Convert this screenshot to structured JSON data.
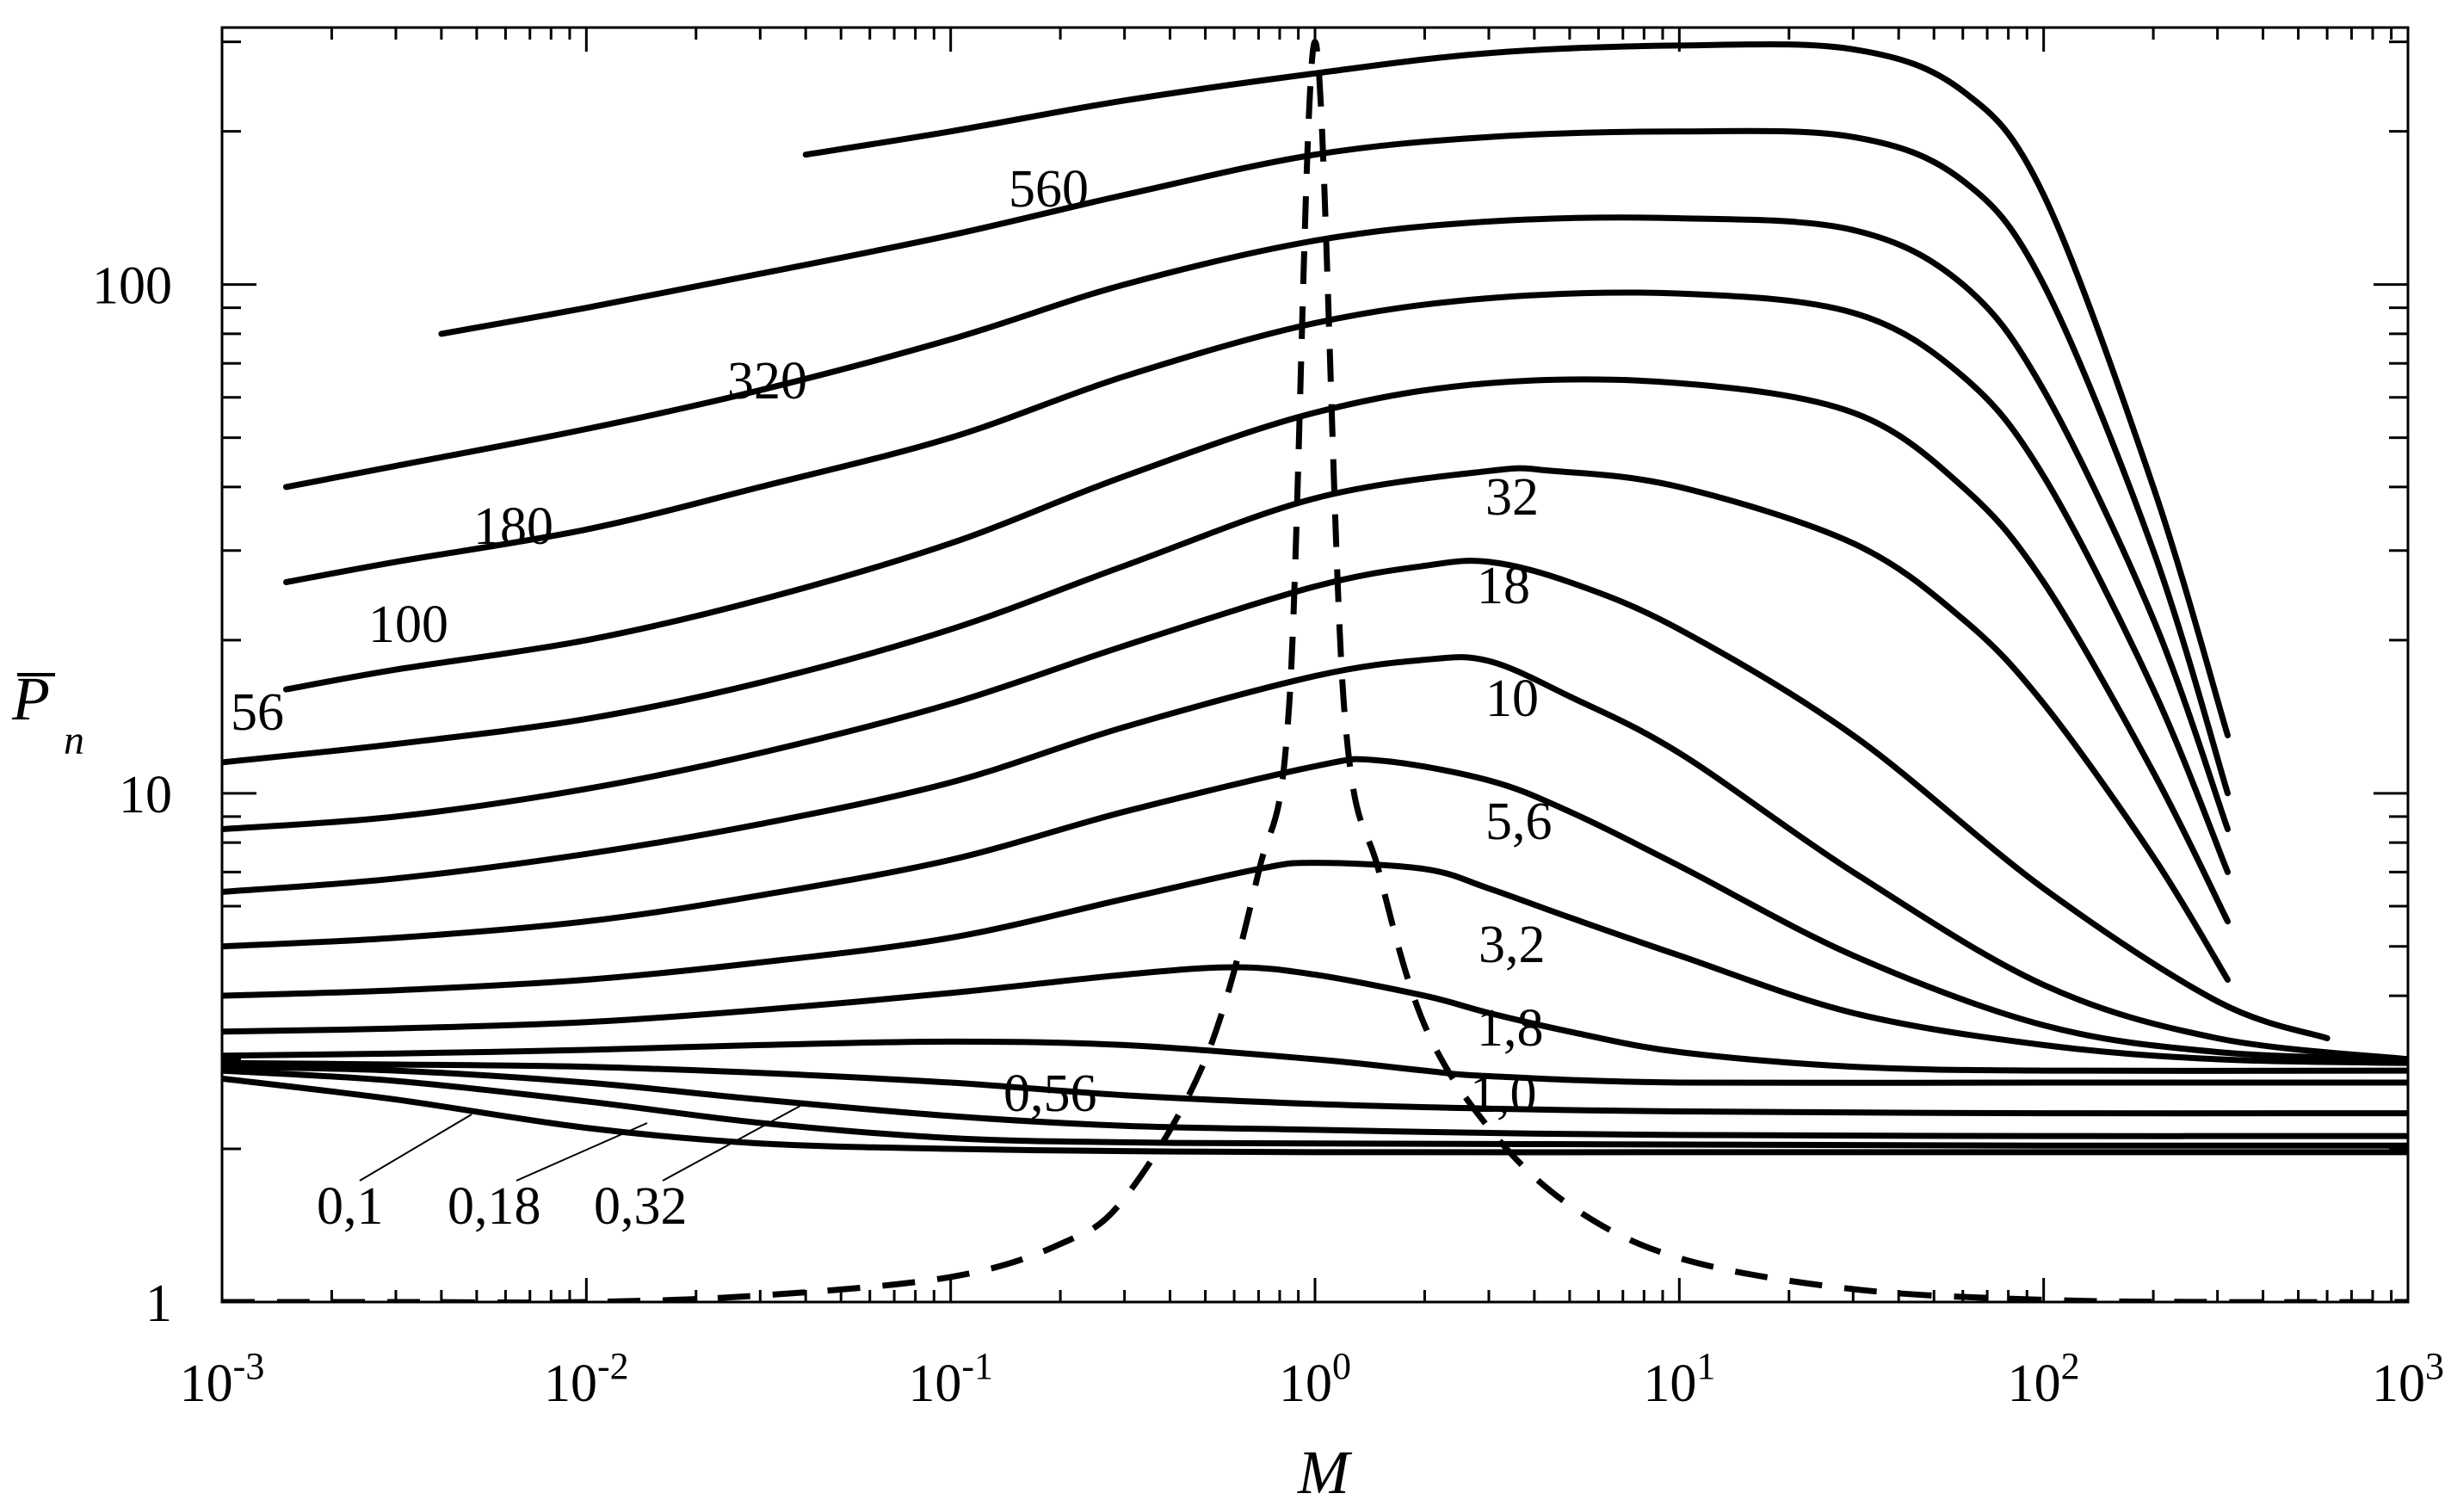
{
  "chart_data": {
    "type": "line",
    "x_scale": "log",
    "y_scale": "log",
    "xlim": [
      0.001,
      1000
    ],
    "ylim": [
      1,
      320
    ],
    "grid": false,
    "xlabel": "M",
    "ylabel": {
      "main": "P",
      "sub": "n",
      "overline": true
    },
    "x_ticks": [
      {
        "base": "10",
        "exp": "-3",
        "value": 0.001
      },
      {
        "base": "10",
        "exp": "-2",
        "value": 0.01
      },
      {
        "base": "10",
        "exp": "-1",
        "value": 0.1
      },
      {
        "base": "10",
        "exp": "0",
        "value": 1
      },
      {
        "base": "10",
        "exp": "1",
        "value": 10
      },
      {
        "base": "10",
        "exp": "2",
        "value": 100
      },
      {
        "base": "10",
        "exp": "3",
        "value": 1000
      }
    ],
    "y_ticks": [
      {
        "label": "1",
        "value": 1
      },
      {
        "label": "10",
        "value": 10
      },
      {
        "label": "100",
        "value": 100
      }
    ],
    "series": [
      {
        "name": "560",
        "style": "solid",
        "x": [
          0.04,
          0.1,
          0.3,
          1,
          3,
          10,
          30,
          60,
          100,
          200,
          320
        ],
        "y": [
          180,
          200,
          230,
          260,
          285,
          295,
          290,
          240,
          150,
          40,
          13
        ]
      },
      {
        "name": "320",
        "x": [
          0.004,
          0.01,
          0.03,
          0.1,
          0.3,
          1,
          3,
          10,
          30,
          60,
          100,
          200,
          320
        ],
        "y": [
          80,
          90,
          105,
          125,
          150,
          180,
          195,
          200,
          195,
          160,
          100,
          30,
          10
        ],
        "style": "solid"
      },
      {
        "name": "180",
        "x": [
          0.0015,
          0.003,
          0.01,
          0.03,
          0.1,
          0.3,
          1,
          3,
          10,
          30,
          60,
          100,
          200,
          320
        ],
        "y": [
          40,
          44,
          52,
          62,
          78,
          100,
          122,
          133,
          135,
          128,
          100,
          62,
          22,
          8.5
        ],
        "style": "solid"
      },
      {
        "name": "100",
        "x": [
          0.0015,
          0.003,
          0.01,
          0.03,
          0.1,
          0.3,
          1,
          3,
          10,
          30,
          60,
          100,
          200,
          320
        ],
        "y": [
          26,
          28.5,
          33,
          40,
          50,
          66,
          84,
          94,
          96,
          88,
          66,
          42,
          16,
          7
        ],
        "style": "solid"
      },
      {
        "name": "56",
        "x": [
          0.0015,
          0.003,
          0.01,
          0.03,
          0.1,
          0.3,
          1,
          3,
          10,
          30,
          60,
          100,
          200,
          320
        ],
        "y": [
          16,
          17.5,
          20,
          24,
          31,
          42,
          56,
          64,
          64,
          56,
          40,
          26,
          11,
          5.6
        ],
        "style": "solid"
      },
      {
        "name": "32",
        "x": [
          0.001,
          0.003,
          0.01,
          0.03,
          0.1,
          0.3,
          1,
          3,
          4.5,
          10,
          30,
          60,
          100,
          200,
          320
        ],
        "y": [
          11.5,
          12.5,
          14,
          16.5,
          21,
          28,
          38,
          43,
          43,
          40,
          31,
          22,
          15,
          7.5,
          4.3
        ],
        "style": "solid"
      },
      {
        "name": "18",
        "x": [
          0.001,
          0.003,
          0.01,
          0.03,
          0.1,
          0.3,
          1,
          2,
          3,
          5,
          10,
          30,
          100,
          300,
          600
        ],
        "y": [
          8.5,
          9,
          10.2,
          12,
          15,
          19.5,
          25.5,
          28,
          28.5,
          26,
          21,
          13,
          6.5,
          3.9,
          3.3
        ],
        "style": "solid"
      },
      {
        "name": "10",
        "x": [
          0.001,
          0.003,
          0.01,
          0.03,
          0.1,
          0.3,
          1,
          2,
          3,
          5,
          10,
          30,
          100,
          300,
          1000
        ],
        "y": [
          6.4,
          6.8,
          7.6,
          8.7,
          10.5,
          13.5,
          17,
          18.3,
          18.2,
          15.5,
          12,
          7,
          4.2,
          3.3,
          3.0
        ],
        "style": "solid"
      },
      {
        "name": "5,6",
        "x": [
          0.001,
          0.003,
          0.01,
          0.03,
          0.1,
          0.3,
          1,
          1.5,
          3,
          5,
          10,
          30,
          100,
          300,
          1000
        ],
        "y": [
          5.0,
          5.2,
          5.6,
          6.3,
          7.4,
          9.2,
          11.3,
          11.6,
          10.6,
          9.2,
          7.2,
          4.8,
          3.5,
          3.1,
          3.0
        ],
        "style": "solid"
      },
      {
        "name": "3,2",
        "x": [
          0.001,
          0.003,
          0.01,
          0.03,
          0.1,
          0.3,
          0.7,
          1,
          2,
          3,
          5,
          10,
          30,
          100,
          300,
          1000
        ],
        "y": [
          4.0,
          4.1,
          4.3,
          4.65,
          5.2,
          6.2,
          7.1,
          7.3,
          7.1,
          6.5,
          5.7,
          4.8,
          3.7,
          3.2,
          3.0,
          2.95
        ],
        "style": "solid"
      },
      {
        "name": "1,8",
        "x": [
          0.001,
          0.003,
          0.01,
          0.03,
          0.1,
          0.3,
          0.6,
          1,
          2,
          3,
          5,
          10,
          30,
          100,
          1000
        ],
        "y": [
          3.4,
          3.45,
          3.55,
          3.75,
          4.05,
          4.4,
          4.55,
          4.4,
          4.0,
          3.7,
          3.4,
          3.1,
          2.9,
          2.85,
          2.85
        ],
        "style": "solid"
      },
      {
        "name": "1,0",
        "x": [
          0.001,
          0.003,
          0.01,
          0.03,
          0.1,
          0.3,
          1,
          2,
          3,
          10,
          100,
          1000
        ],
        "y": [
          3.05,
          3.08,
          3.13,
          3.2,
          3.25,
          3.2,
          3.0,
          2.85,
          2.78,
          2.7,
          2.7,
          2.7
        ],
        "style": "solid"
      },
      {
        "name": "0,56",
        "x": [
          0.001,
          0.003,
          0.01,
          0.03,
          0.1,
          0.3,
          1,
          3,
          10,
          100,
          1000
        ],
        "y": [
          2.95,
          2.93,
          2.9,
          2.82,
          2.7,
          2.55,
          2.45,
          2.4,
          2.37,
          2.35,
          2.35
        ],
        "style": "solid"
      },
      {
        "name": "0,32",
        "x": [
          0.001,
          0.003,
          0.01,
          0.03,
          0.1,
          0.3,
          1,
          3,
          10,
          100,
          1000
        ],
        "y": [
          2.9,
          2.85,
          2.7,
          2.5,
          2.32,
          2.22,
          2.18,
          2.15,
          2.13,
          2.12,
          2.12
        ],
        "style": "solid"
      },
      {
        "name": "0,18",
        "x": [
          0.001,
          0.003,
          0.01,
          0.03,
          0.1,
          0.3,
          1,
          10,
          100,
          1000
        ],
        "y": [
          2.85,
          2.72,
          2.48,
          2.25,
          2.1,
          2.06,
          2.05,
          2.04,
          2.03,
          2.03
        ],
        "style": "solid"
      },
      {
        "name": "0,1",
        "x": [
          0.001,
          0.003,
          0.01,
          0.03,
          0.1,
          0.3,
          1,
          10,
          100,
          1000
        ],
        "y": [
          2.75,
          2.5,
          2.2,
          2.05,
          2.0,
          1.98,
          1.97,
          1.97,
          1.97,
          1.97
        ],
        "style": "solid"
      },
      {
        "style": "dashed",
        "x": [
          0.001,
          0.003,
          0.01,
          0.03,
          0.1,
          0.2,
          0.3,
          0.5,
          0.7,
          0.85,
          1.0,
          1.2,
          1.5,
          2,
          3,
          5,
          10,
          30,
          100,
          300,
          1000
        ],
        "y": [
          1.0,
          1.0,
          1.0,
          1.03,
          1.12,
          1.3,
          1.6,
          3.0,
          7.0,
          15,
          300,
          15,
          7.0,
          3.5,
          2.2,
          1.55,
          1.22,
          1.06,
          1.01,
          1.0,
          1.0
        ]
      }
    ],
    "curve_labels": [
      {
        "text": "560"
      },
      {
        "text": "320"
      },
      {
        "text": "180"
      },
      {
        "text": "100"
      },
      {
        "text": "56"
      },
      {
        "text": "32"
      },
      {
        "text": "18"
      },
      {
        "text": "10"
      },
      {
        "text": "5,6"
      },
      {
        "text": "3,2"
      },
      {
        "text": "1,8"
      },
      {
        "text": "1,0"
      },
      {
        "text": "0,56"
      },
      {
        "text": "0,32"
      },
      {
        "text": "0,18"
      },
      {
        "text": "0,1"
      }
    ]
  }
}
